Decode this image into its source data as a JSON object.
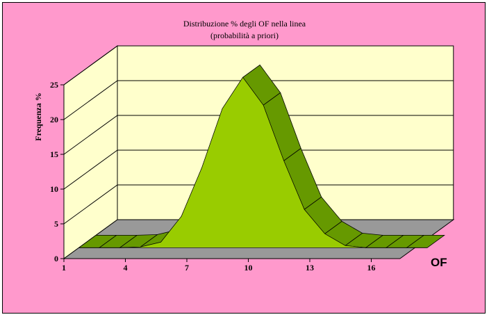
{
  "chart_data": {
    "type": "area",
    "title": "Distribuzione % degli OF nella linea",
    "subtitle": "(probabilità a priori)",
    "ylabel": "Frequenza %",
    "xlabel": "OF",
    "ylim": [
      0,
      25
    ],
    "yticks": [
      "0",
      "5",
      "10",
      "15",
      "20",
      "25"
    ],
    "xticks": [
      "1",
      "4",
      "7",
      "10",
      "13",
      "16"
    ],
    "categories": [
      1,
      2,
      3,
      4,
      5,
      6,
      7,
      8,
      9,
      10,
      11,
      12,
      13,
      14,
      15,
      16,
      17,
      18
    ],
    "values": [
      0,
      0,
      0,
      0.1,
      0.8,
      4.5,
      11.5,
      20,
      24.5,
      20.5,
      12.5,
      5.5,
      2,
      0.3,
      0,
      0,
      0,
      0
    ],
    "grid": true,
    "three_d": true,
    "colors": {
      "background": "#ff99cc",
      "back_wall": "#ffffcc",
      "floor": "#999999",
      "area_front": "#99cc00",
      "area_top": "#669900"
    }
  }
}
